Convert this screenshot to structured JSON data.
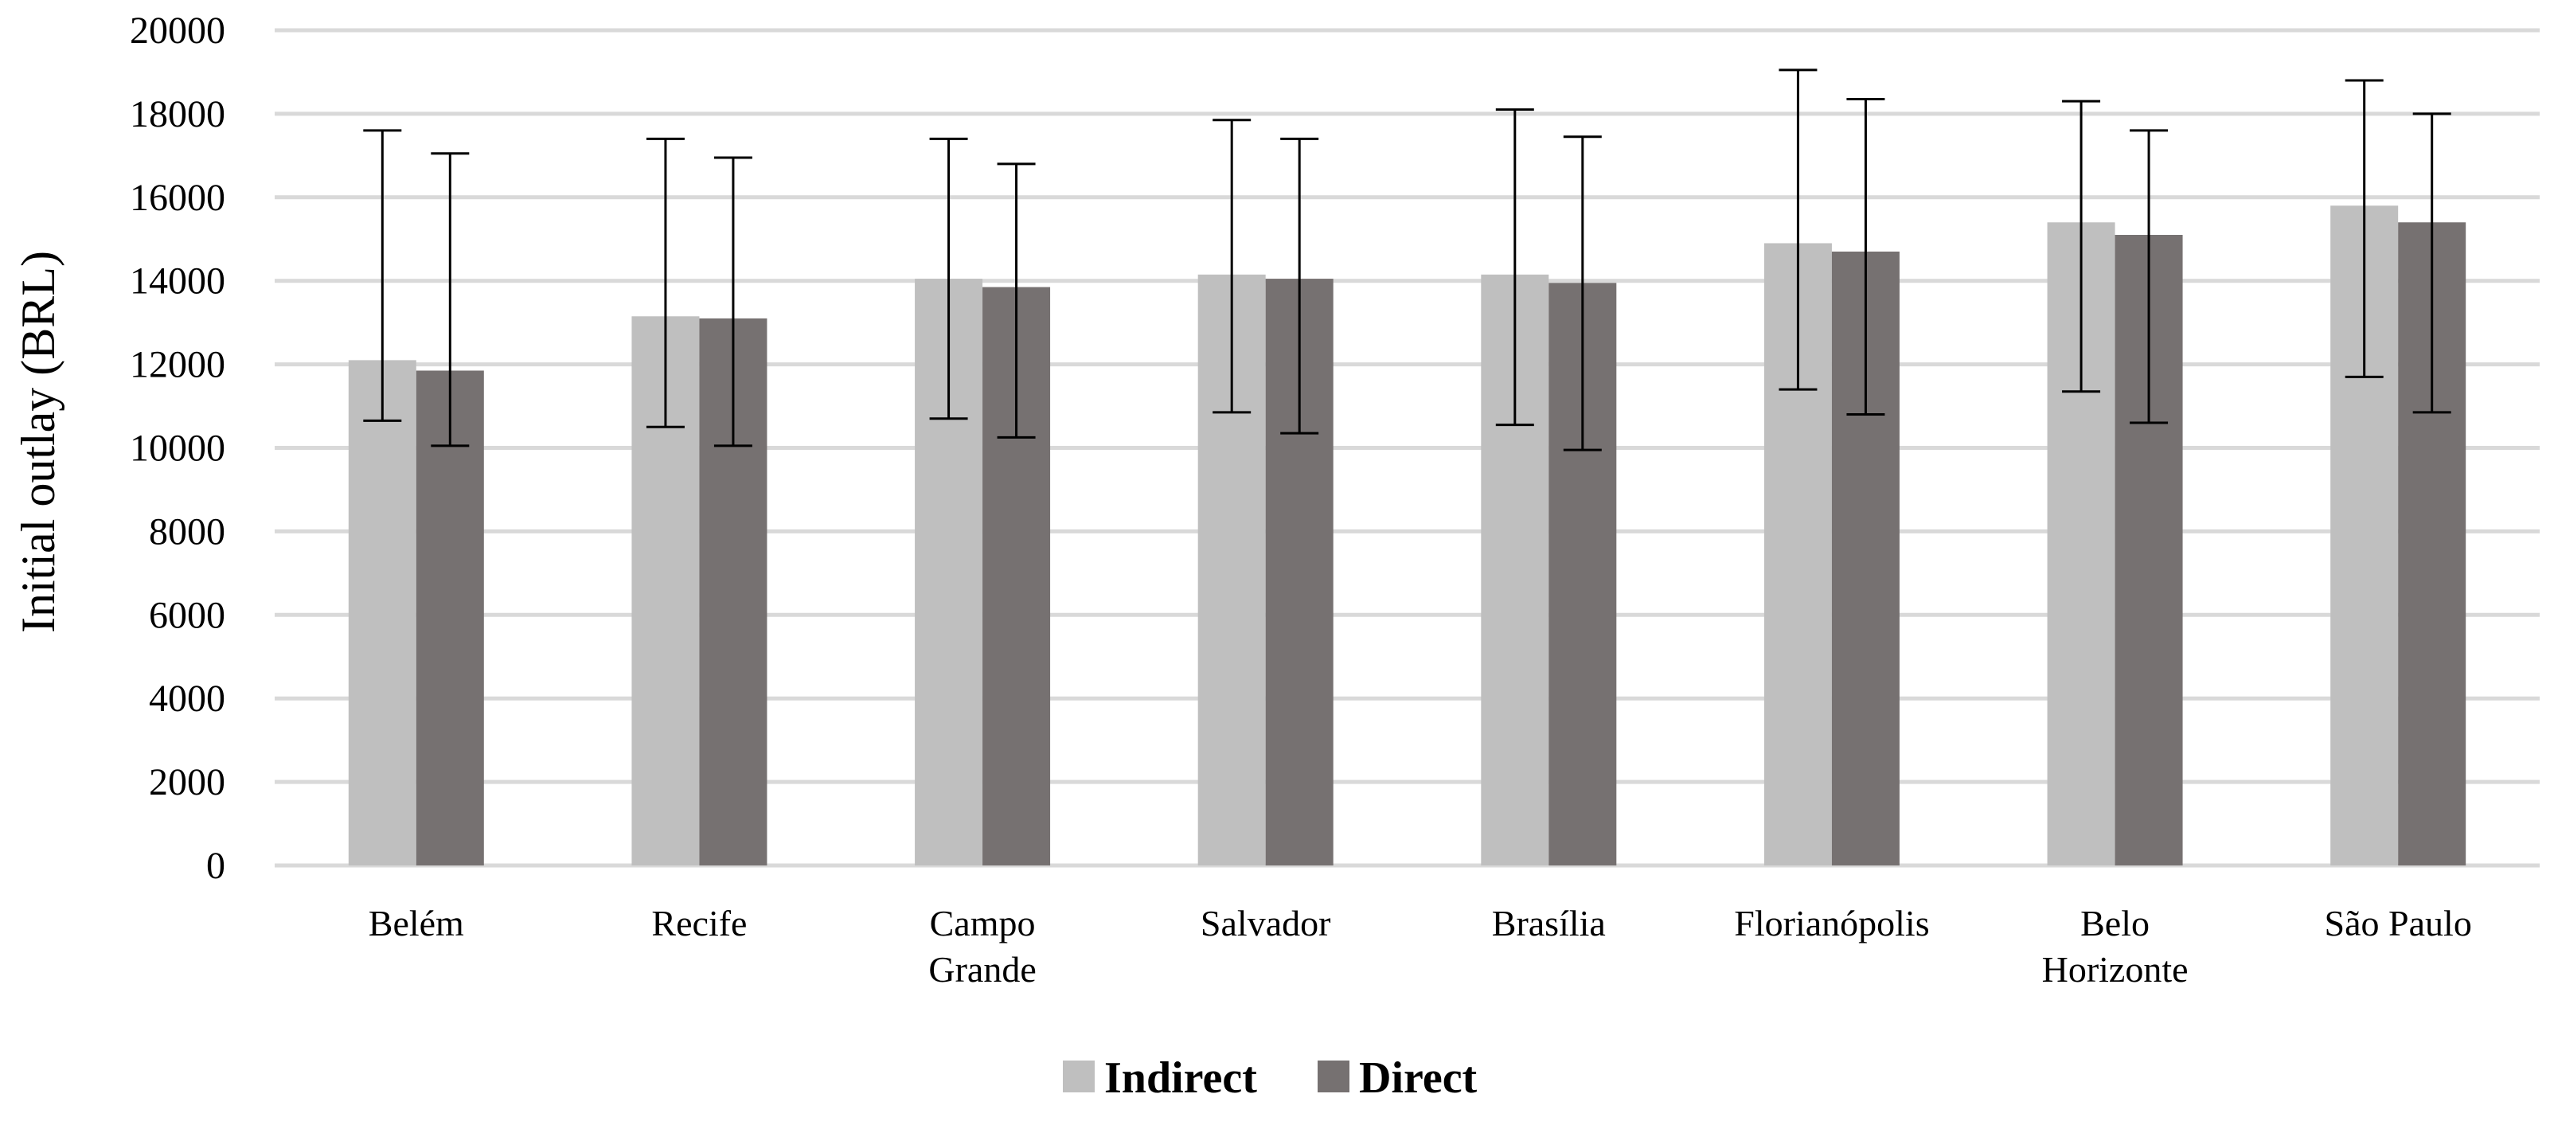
{
  "chart_data": {
    "type": "bar",
    "title": "",
    "xlabel": "",
    "ylabel": "Initial outlay (BRL)",
    "ylim": [
      0,
      20000
    ],
    "yticks": [
      0,
      2000,
      4000,
      6000,
      8000,
      10000,
      12000,
      14000,
      16000,
      18000,
      20000
    ],
    "grid": "horizontal",
    "legend_position": "bottom-center",
    "categories": [
      [
        "Belém"
      ],
      [
        "Recife"
      ],
      [
        "Campo",
        "Grande"
      ],
      [
        "Salvador"
      ],
      [
        "Brasília"
      ],
      [
        "Florianópolis"
      ],
      [
        "Belo",
        "Horizonte"
      ],
      [
        "São Paulo"
      ]
    ],
    "series": [
      {
        "name": "Indirect",
        "color": "#bfbfbf",
        "values": [
          12100,
          13150,
          14050,
          14150,
          14150,
          14900,
          15400,
          15800
        ],
        "error_low": [
          10650,
          10500,
          10700,
          10850,
          10550,
          11400,
          11350,
          11700
        ],
        "error_high": [
          17600,
          17400,
          17400,
          17850,
          18100,
          19050,
          18300,
          18800
        ]
      },
      {
        "name": "Direct",
        "color": "#767171",
        "values": [
          11850,
          13100,
          13850,
          14050,
          13950,
          14700,
          15100,
          15400
        ],
        "error_low": [
          10050,
          10050,
          10250,
          10350,
          9950,
          10800,
          10600,
          10850
        ],
        "error_high": [
          17050,
          16950,
          16800,
          17400,
          17450,
          18350,
          17600,
          18000
        ]
      }
    ]
  }
}
